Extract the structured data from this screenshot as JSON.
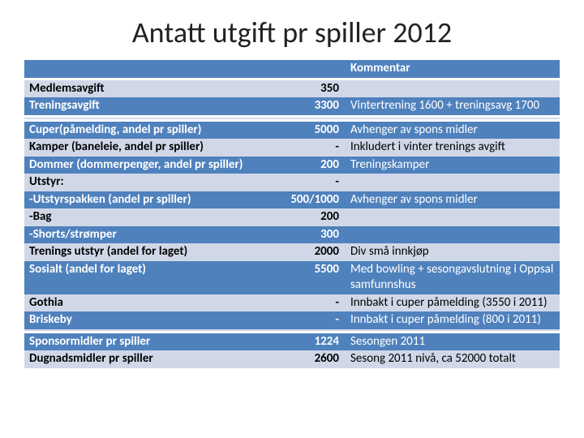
{
  "title": "Antatt utgift pr spiller 2012",
  "header": {
    "comment_label": "Kommentar"
  },
  "colors": {
    "blue": "#4f81bd",
    "light": "#d0d8e8",
    "text_on_blue": "#ffffff",
    "text_on_light": "#000000"
  },
  "rows": [
    {
      "band": "hdr",
      "label": "",
      "value": "",
      "comment_key": "header.comment_label"
    },
    {
      "band": "light",
      "label": "Medlemsavgift",
      "value": "350",
      "comment": ""
    },
    {
      "band": "blue",
      "label": "Treningsavgift",
      "value": "3300",
      "comment": "Vintertrening 1600 + treningsavg 1700"
    },
    {
      "band": "light",
      "label": "",
      "value": "",
      "comment": ""
    },
    {
      "band": "blue",
      "label": "Cuper(påmelding, andel pr spiller)",
      "value": "5000",
      "comment": "Avhenger av spons midler"
    },
    {
      "band": "light",
      "label": "Kamper (baneleie, andel pr spiller)",
      "value": "-",
      "comment": "Inkludert i vinter trenings avgift"
    },
    {
      "band": "blue",
      "label": "Dommer (dommerpenger, andel pr spiller)",
      "value": "200",
      "comment": "Treningskamper"
    },
    {
      "band": "light",
      "label": "Utstyr:",
      "value": "-",
      "comment": ""
    },
    {
      "band": "blue",
      "label": "-Utstyrspakken (andel pr spiller)",
      "value": "500/1000",
      "comment": "Avhenger av spons midler"
    },
    {
      "band": "light",
      "label": "-Bag",
      "value": "200",
      "comment": ""
    },
    {
      "band": "blue",
      "label": "-Shorts/strømper",
      "value": "300",
      "comment": ""
    },
    {
      "band": "light",
      "label": "Trenings utstyr (andel for laget)",
      "value": "2000",
      "comment": "Div små innkjøp"
    },
    {
      "band": "blue",
      "label": "Sosialt (andel for laget)",
      "value": "5500",
      "comment": "Med bowling + sesongavslutning i Oppsal samfunnshus"
    },
    {
      "band": "light",
      "label": "Gothia",
      "value": "-",
      "comment": "Innbakt i cuper påmelding (3550 i 2011)"
    },
    {
      "band": "blue",
      "label": "Briskeby",
      "value": "-",
      "comment": "Innbakt i cuper påmelding (800 i 2011)"
    },
    {
      "band": "light",
      "label": "",
      "value": "",
      "comment": ""
    },
    {
      "band": "blue",
      "label": "Sponsormidler pr spiller",
      "value": "1224",
      "comment": "Sesongen 2011"
    },
    {
      "band": "light",
      "label": "Dugnadsmidler pr spiller",
      "value": "2600",
      "comment": "Sesong 2011 nivå, ca 52000 totalt"
    }
  ]
}
